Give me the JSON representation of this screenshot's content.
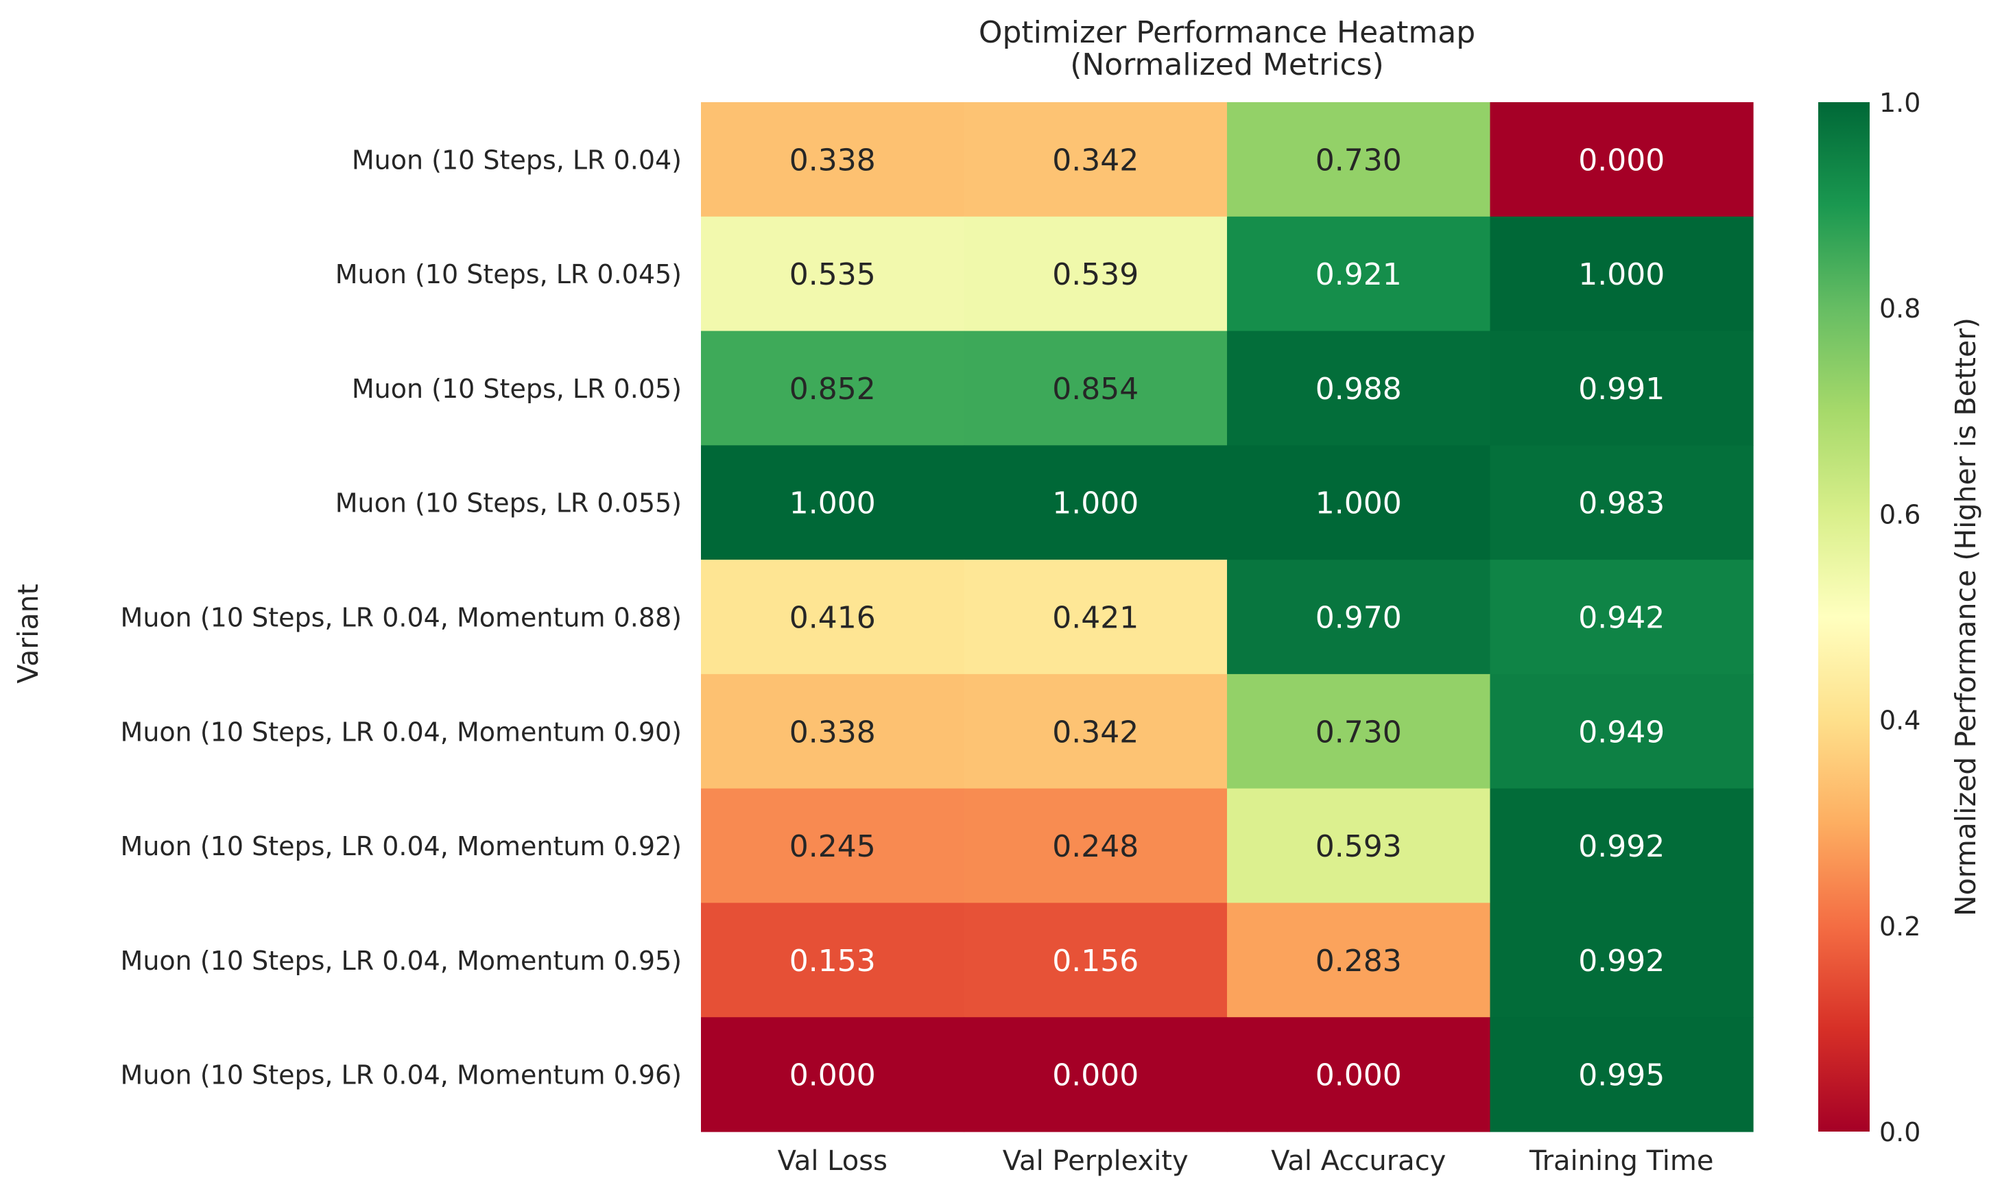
{
  "chart_data": {
    "type": "heatmap",
    "title_lines": [
      "Optimizer Performance Heatmap",
      "(Normalized Metrics)"
    ],
    "xlabel": "",
    "ylabel": "Variant",
    "colorbar_label": "Normalized Performance (Higher is Better)",
    "columns": [
      "Val Loss",
      "Val Perplexity",
      "Val Accuracy",
      "Training Time"
    ],
    "rows": [
      "Muon (10 Steps, LR 0.04)",
      "Muon (10 Steps, LR 0.045)",
      "Muon (10 Steps, LR 0.05)",
      "Muon (10 Steps, LR 0.055)",
      "Muon (10 Steps, LR 0.04, Momentum 0.88)",
      "Muon (10 Steps, LR 0.04, Momentum 0.90)",
      "Muon (10 Steps, LR 0.04, Momentum 0.92)",
      "Muon (10 Steps, LR 0.04, Momentum 0.95)",
      "Muon (10 Steps, LR 0.04, Momentum 0.96)"
    ],
    "values": [
      [
        0.338,
        0.342,
        0.73,
        0.0
      ],
      [
        0.535,
        0.539,
        0.921,
        1.0
      ],
      [
        0.852,
        0.854,
        0.988,
        0.991
      ],
      [
        1.0,
        1.0,
        1.0,
        0.983
      ],
      [
        0.416,
        0.421,
        0.97,
        0.942
      ],
      [
        0.338,
        0.342,
        0.73,
        0.949
      ],
      [
        0.245,
        0.248,
        0.593,
        0.992
      ],
      [
        0.153,
        0.156,
        0.283,
        0.992
      ],
      [
        0.0,
        0.0,
        0.0,
        0.995
      ]
    ],
    "value_range": [
      0.0,
      1.0
    ],
    "colormap": "RdYlGn",
    "colorbar_ticks": [
      "0.0",
      "0.2",
      "0.4",
      "0.6",
      "0.8",
      "1.0"
    ],
    "colorbar_tick_values": [
      0.0,
      0.2,
      0.4,
      0.6,
      0.8,
      1.0
    ],
    "cell_labels_format": "3 decimals",
    "grid": false
  }
}
